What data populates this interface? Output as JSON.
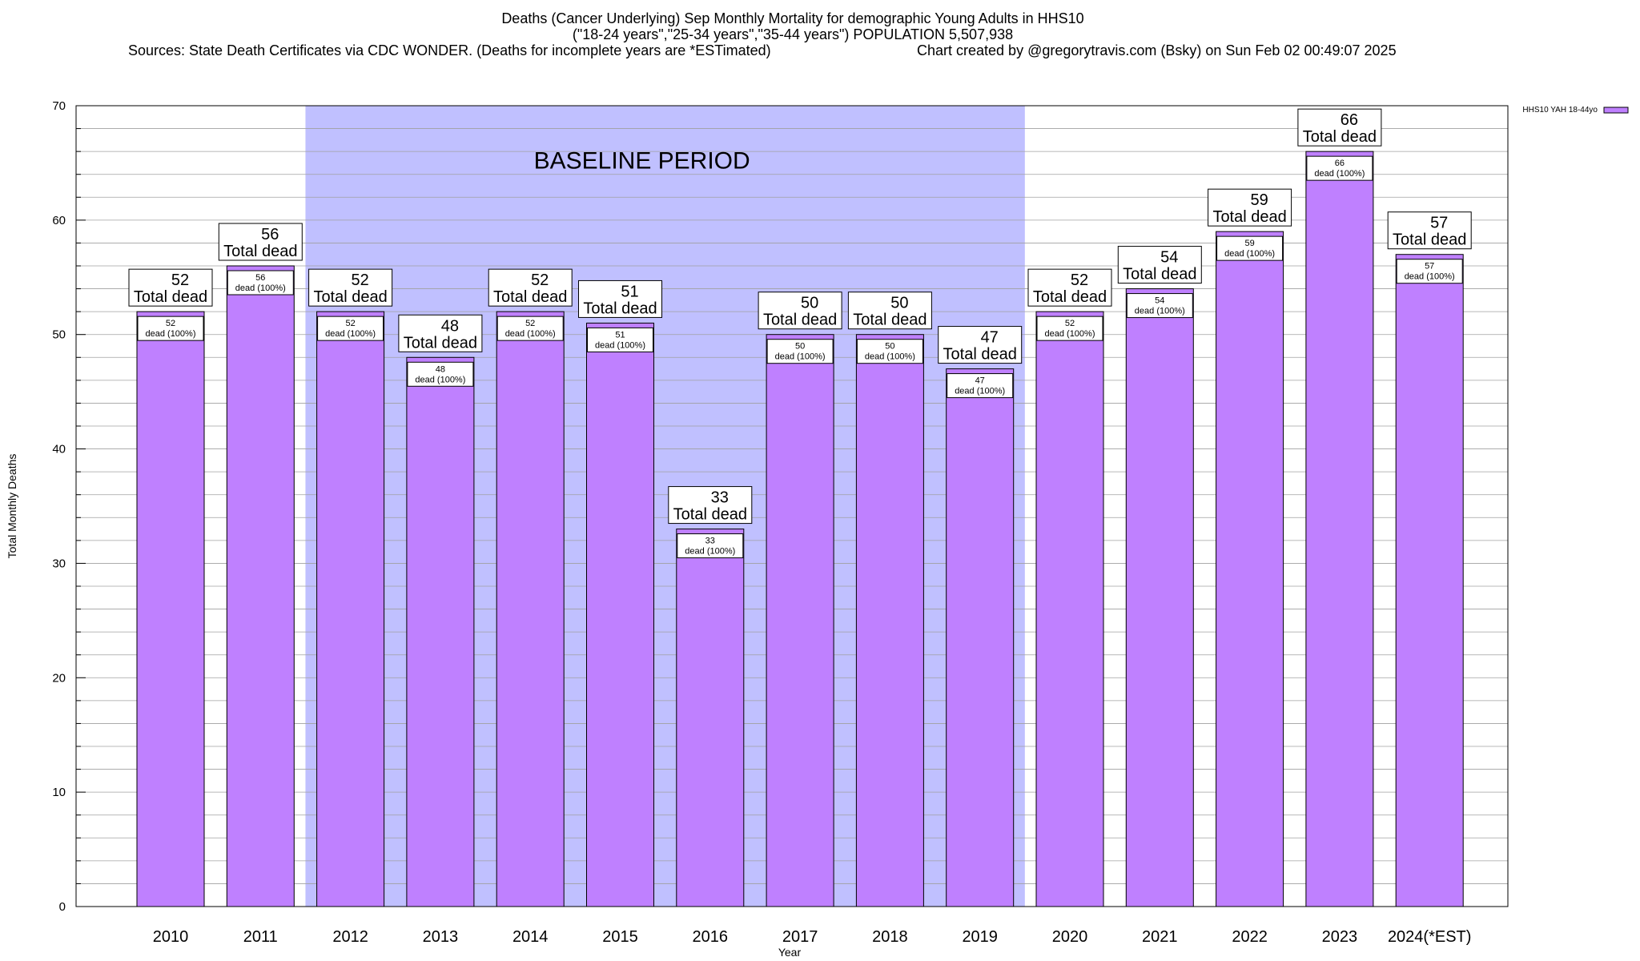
{
  "header": {
    "title_line1": "Deaths (Cancer Underlying) Sep Monthly Mortality for demographic Young Adults in HHS10",
    "title_line2": "(\"18-24 years\",\"25-34 years\",\"35-44 years\") POPULATION 5,507,938",
    "sources": "Sources: State Death Certificates via CDC WONDER. (Deaths for incomplete years are *ESTimated)",
    "credit": "Chart created by @gregorytravis.com (Bsky) on Sun Feb 02 00:49:07 2025"
  },
  "colors": {
    "bar_fill": "#bf80ff",
    "bar_stroke": "#000000",
    "baseline_fill": "#c0c0ff",
    "grid": "#a0a0a0"
  },
  "chart_data": {
    "type": "bar",
    "title": "Deaths (Cancer Underlying) Sep Monthly Mortality for demographic Young Adults in HHS10",
    "xlabel": "Year",
    "ylabel": "Total Monthly Deaths",
    "ylim": [
      0,
      70
    ],
    "yticks": [
      0,
      10,
      20,
      30,
      40,
      50,
      60,
      70
    ],
    "grid": true,
    "legend": {
      "position": "top-right",
      "entries": [
        "HHS10 YAH 18-44yo"
      ]
    },
    "categories": [
      "2010",
      "2011",
      "2012",
      "2013",
      "2014",
      "2015",
      "2016",
      "2017",
      "2018",
      "2019",
      "2020",
      "2021",
      "2022",
      "2023",
      "2024(*EST)"
    ],
    "series": [
      {
        "name": "HHS10 YAH 18-44yo",
        "values": [
          52,
          56,
          52,
          48,
          52,
          51,
          33,
          50,
          50,
          47,
          52,
          54,
          59,
          66,
          57
        ]
      }
    ],
    "top_label_suffix": "Total dead",
    "inner_label_suffix": "dead (100%)",
    "baseline_period": {
      "label": "BASELINE PERIOD",
      "from": "2012",
      "to": "2019"
    }
  }
}
